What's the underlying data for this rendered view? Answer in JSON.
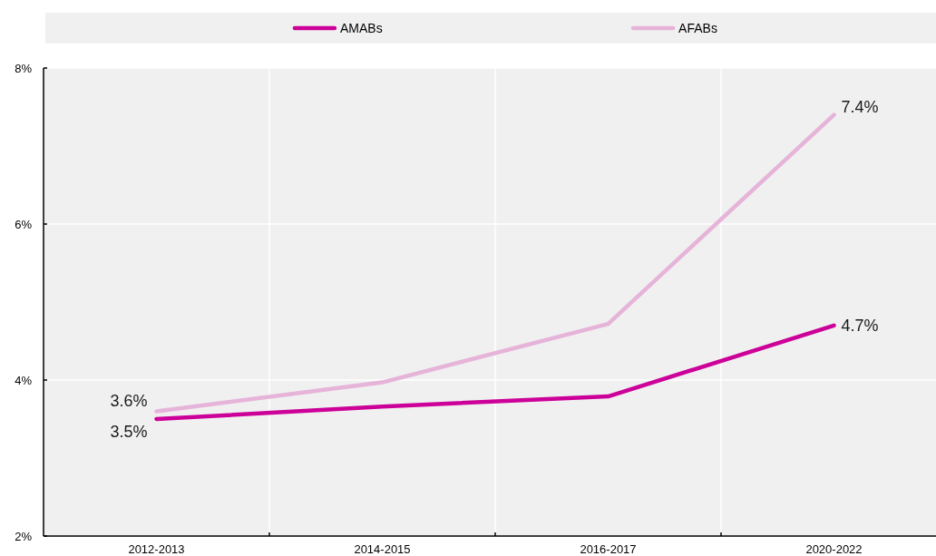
{
  "chart_data": {
    "type": "line",
    "categories": [
      "2012-2013",
      "2014-2015",
      "2016-2017",
      "2020-2022"
    ],
    "series": [
      {
        "name": "AMABs",
        "color": "#cc0099",
        "values": [
          3.5,
          3.66,
          3.79,
          4.7
        ],
        "value_labels": [
          "3.5%",
          null,
          null,
          "4.7%"
        ]
      },
      {
        "name": "AFABs",
        "color": "#e6b3d9",
        "values": [
          3.6,
          3.97,
          4.72,
          7.4
        ],
        "value_labels": [
          "3.6%",
          null,
          null,
          "7.4%"
        ]
      }
    ],
    "ylim": [
      2,
      8
    ],
    "yticks": [
      {
        "value": 2,
        "label": "2%"
      },
      {
        "value": 4,
        "label": "4%"
      },
      {
        "value": 6,
        "label": "6%"
      },
      {
        "value": 8,
        "label": "8%"
      }
    ],
    "grid": true,
    "legend": "top",
    "line_style": "solid"
  }
}
